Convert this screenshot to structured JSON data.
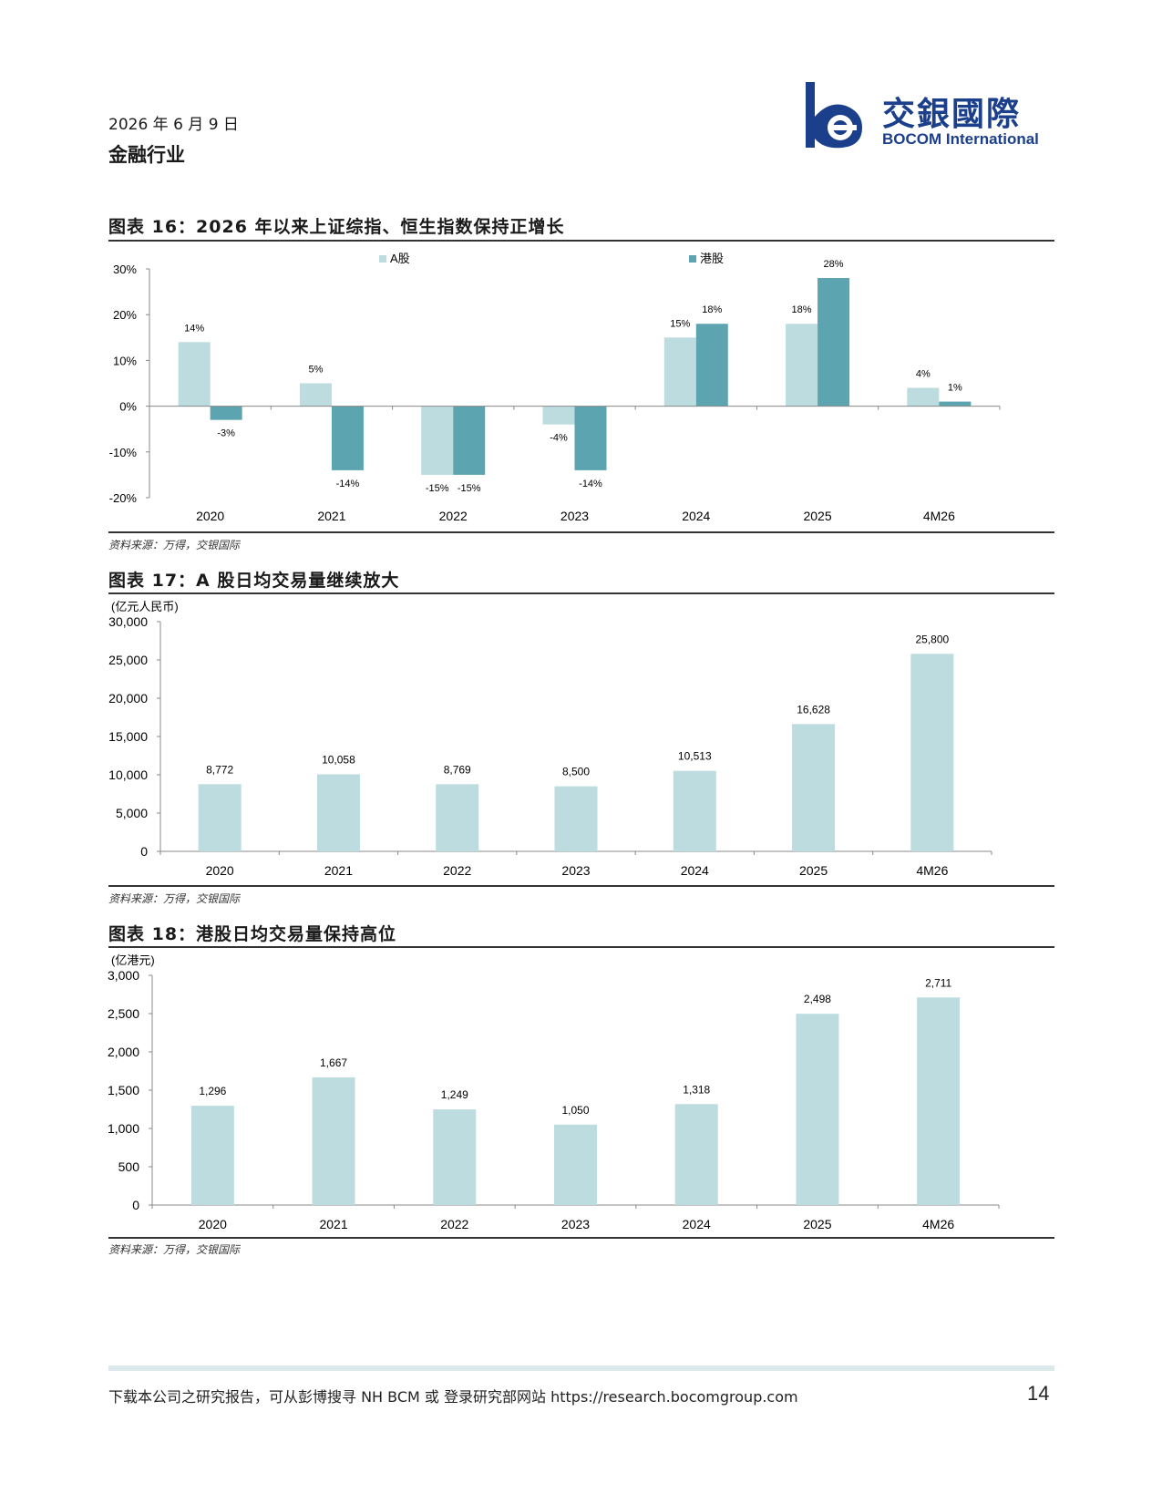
{
  "header": {
    "date": "2026 年 6 月 9 日",
    "sector": "金融行业",
    "logo_cn": "交銀國際",
    "logo_en": "BOCOM International"
  },
  "figures": [
    {
      "title": "图表 16：2026 年以来上证综指、恒生指数保持正增长",
      "source": "资料来源：万得，交银国际"
    },
    {
      "title": "图表 17：A 股日均交易量继续放大",
      "source": "资料来源：万得，交银国际"
    },
    {
      "title": "图表 18：港股日均交易量保持高位",
      "source": "资料来源：万得，交银国际"
    }
  ],
  "chart_data": [
    {
      "type": "bar",
      "title": "",
      "categories": [
        "2020",
        "2021",
        "2022",
        "2023",
        "2024",
        "2025",
        "4M26"
      ],
      "series": [
        {
          "name": "A股",
          "values": [
            14,
            5,
            -15,
            -4,
            15,
            18,
            4
          ],
          "labels": [
            "14%",
            "5%",
            "-15%",
            "-4%",
            "15%",
            "18%",
            "4%"
          ],
          "color": "#bcdce0"
        },
        {
          "name": "港股",
          "values": [
            -3,
            -14,
            -15,
            -14,
            18,
            28,
            1
          ],
          "labels": [
            "-3%",
            "-14%",
            "-15%",
            "-14%",
            "18%",
            "28%",
            "1%"
          ],
          "color": "#5ba4b0"
        }
      ],
      "yticks": [
        "30%",
        "20%",
        "10%",
        "0%",
        "-10%",
        "-20%"
      ],
      "ylim": [
        -20,
        30
      ],
      "legend": "top-center"
    },
    {
      "type": "bar",
      "unit": "(亿元人民币)",
      "categories": [
        "2020",
        "2021",
        "2022",
        "2023",
        "2024",
        "2025",
        "4M26"
      ],
      "values": [
        8772,
        10058,
        8769,
        8500,
        10513,
        16628,
        25800
      ],
      "labels": [
        "8,772",
        "10,058",
        "8,769",
        "8,500",
        "10,513",
        "16,628",
        "25,800"
      ],
      "yticks": [
        "30,000",
        "25,000",
        "20,000",
        "15,000",
        "10,000",
        "5,000",
        "0"
      ],
      "ylim": [
        0,
        30000
      ],
      "color": "#bcdce0"
    },
    {
      "type": "bar",
      "unit": "(亿港元)",
      "categories": [
        "2020",
        "2021",
        "2022",
        "2023",
        "2024",
        "2025",
        "4M26"
      ],
      "values": [
        1296,
        1667,
        1249,
        1050,
        1318,
        2498,
        2711
      ],
      "labels": [
        "1,296",
        "1,667",
        "1,249",
        "1,050",
        "1,318",
        "2,498",
        "2,711"
      ],
      "yticks": [
        "3,000",
        "2,500",
        "2,000",
        "1,500",
        "1,000",
        "500",
        "0"
      ],
      "ylim": [
        0,
        3000
      ],
      "color": "#bcdce0"
    }
  ],
  "footer": {
    "text": "下载本公司之研究报告，可从彭博搜寻 NH BCM 或 登录研究部网站 https://research.bocomgroup.com",
    "page": "14"
  }
}
